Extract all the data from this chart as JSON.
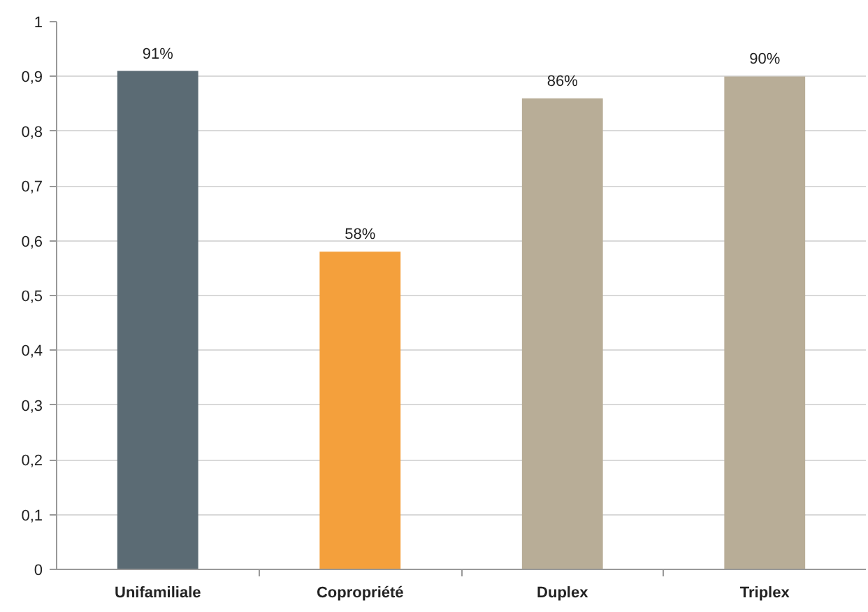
{
  "chart_data": {
    "type": "bar",
    "categories": [
      "Unifamiliale",
      "Copropriété",
      "Duplex",
      "Triplex"
    ],
    "values": [
      0.91,
      0.58,
      0.86,
      0.9
    ],
    "colors": [
      "#5b6b74",
      "#f4a03c",
      "#b8ad97",
      "#b8ad97"
    ],
    "value_labels": [
      "91%",
      "58%",
      "86%",
      "90%"
    ],
    "ylim": [
      0,
      1
    ],
    "yticks": [
      0,
      {
        "value": 0.1,
        "label": "0,1"
      },
      {
        "value": 0.2,
        "label": "0,2"
      },
      {
        "value": 0.3,
        "label": "0,3"
      },
      {
        "value": 0.4,
        "label": "0,4"
      },
      {
        "value": 0.5,
        "label": "0,5"
      },
      {
        "value": 0.6,
        "label": "0,6"
      },
      {
        "value": 0.7,
        "label": "0,7"
      },
      {
        "value": 0.8,
        "label": "0,8"
      },
      {
        "value": 0.9,
        "label": "0,9"
      },
      1
    ],
    "grid": "y"
  }
}
